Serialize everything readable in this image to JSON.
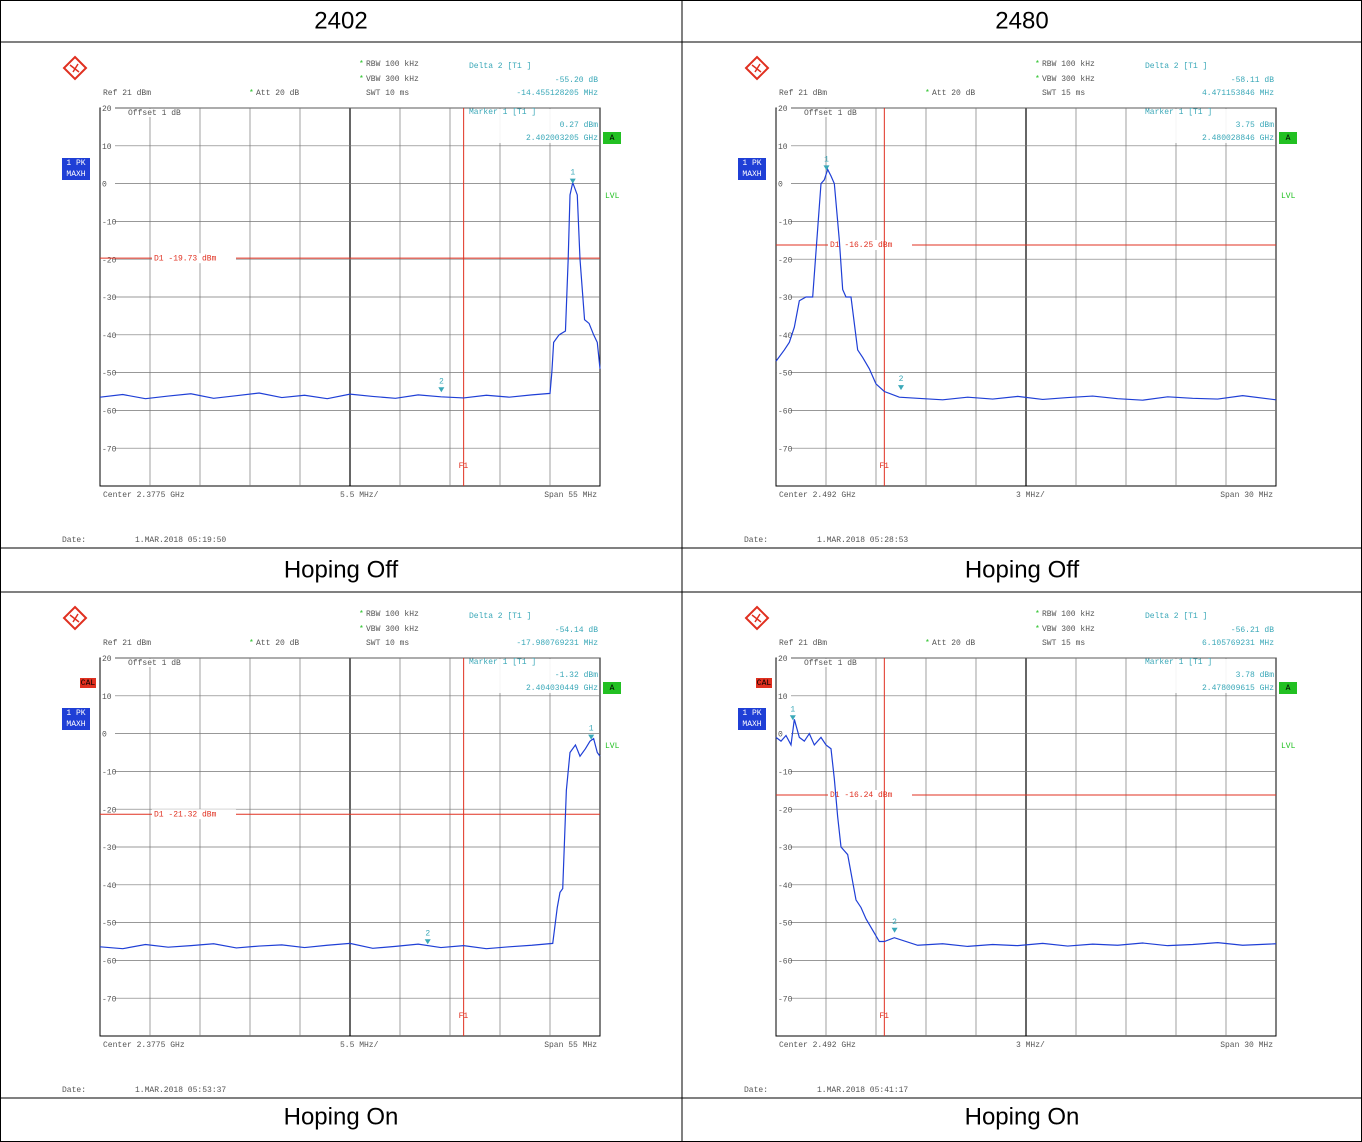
{
  "header": [
    "2402",
    "2480"
  ],
  "captions": [
    [
      "Hoping Off",
      "Hoping Off"
    ],
    [
      "Hoping On",
      "Hoping On"
    ]
  ],
  "panels": [
    {
      "rbw": "RBW 100 kHz",
      "vbw": "VBW 300 kHz",
      "swt": "SWT 10 ms",
      "ref": "Ref  21 dBm",
      "att": "Att  20 dB",
      "offset": "Offset  1 dB",
      "trace_mode": [
        "1 PK",
        "MAXH"
      ],
      "a": "A",
      "lvl": "LVL",
      "delta": [
        "Delta 2 [T1 ]",
        "-55.20 dB",
        "-14.455128205 MHz"
      ],
      "marker": [
        "Marker 1 [T1 ]",
        "0.27 dBm",
        "2.402003205 GHz"
      ],
      "center": "Center 2.3775 GHz",
      "div": "5.5 MHz/",
      "span": "Span 55 MHz",
      "date_label": "Date:",
      "date": "1.MAR.2018  05:19:50",
      "xlim": [
        2.35,
        2.405
      ],
      "ylim": [
        -80,
        20
      ],
      "yticks": [
        20,
        10,
        0,
        -10,
        -20,
        -30,
        -40,
        -50,
        -60,
        -70
      ],
      "d1": {
        "value": -19.73,
        "label": "D1 -19.73 dBm"
      },
      "f1": {
        "value": 2.39,
        "label": "F1"
      },
      "markers": [
        {
          "label": "1",
          "x": 2.402003205,
          "y": 0.27
        },
        {
          "label": "2",
          "x": 2.387548077,
          "y": -54.93
        }
      ],
      "trace": {
        "x": [
          2.35,
          2.3525,
          2.355,
          2.3575,
          2.36,
          2.3625,
          2.365,
          2.3675,
          2.37,
          2.3725,
          2.375,
          2.3775,
          2.38,
          2.3825,
          2.385,
          2.3875,
          2.39,
          2.3925,
          2.395,
          2.3975,
          2.3995,
          2.3997,
          2.3999,
          2.4005,
          2.4012,
          2.4015,
          2.4017,
          2.402,
          2.4025,
          2.4028,
          2.4033,
          2.4038,
          2.4043,
          2.4047,
          2.405
        ],
        "y": [
          -56.5,
          -55.8,
          -56.9,
          -56.2,
          -55.6,
          -56.8,
          -56.1,
          -55.4,
          -56.6,
          -56.0,
          -56.9,
          -55.7,
          -56.3,
          -56.8,
          -55.9,
          -56.4,
          -56.7,
          -56.0,
          -56.5,
          -55.9,
          -55.5,
          -50,
          -42,
          -40,
          -39,
          -20,
          -3,
          0.27,
          -3,
          -20,
          -36,
          -37,
          -40,
          -42,
          -49
        ]
      }
    },
    {
      "rbw": "RBW 100 kHz",
      "vbw": "VBW 300 kHz",
      "swt": "SWT 15 ms",
      "ref": "Ref  21 dBm",
      "att": "Att  20 dB",
      "offset": "Offset  1 dB",
      "trace_mode": [
        "1 PK",
        "MAXH"
      ],
      "a": "A",
      "lvl": "LVL",
      "delta": [
        "Delta 2 [T1 ]",
        "-58.11 dB",
        "4.471153846 MHz"
      ],
      "marker": [
        "Marker 1 [T1 ]",
        "3.75 dBm",
        "2.480028846 GHz"
      ],
      "center": "Center 2.492 GHz",
      "div": "3 MHz/",
      "span": "Span 30 MHz",
      "date_label": "Date:",
      "date": "1.MAR.2018  05:28:53",
      "xlim": [
        2.477,
        2.507
      ],
      "ylim": [
        -80,
        20
      ],
      "yticks": [
        20,
        10,
        0,
        -10,
        -20,
        -30,
        -40,
        -50,
        -60,
        -70
      ],
      "d1": {
        "value": -16.25,
        "label": "D1 -16.25 dBm"
      },
      "f1": {
        "value": 2.4835,
        "label": "F1"
      },
      "markers": [
        {
          "label": "1",
          "x": 2.480028846,
          "y": 3.75
        },
        {
          "label": "2",
          "x": 2.4845,
          "y": -54.36
        }
      ],
      "trace": {
        "x": [
          2.477,
          2.4775,
          2.4778,
          2.4781,
          2.4784,
          2.4788,
          2.4792,
          2.4795,
          2.4797,
          2.4799,
          2.4801,
          2.4803,
          2.4805,
          2.4808,
          2.481,
          2.4812,
          2.4815,
          2.4819,
          2.4822,
          2.4826,
          2.483,
          2.4835,
          2.4844,
          2.4855,
          2.487,
          2.4885,
          2.49,
          2.4915,
          2.493,
          2.4945,
          2.496,
          2.4975,
          2.499,
          2.5005,
          2.502,
          2.5035,
          2.505,
          2.507
        ],
        "y": [
          -47,
          -44,
          -42,
          -38,
          -31,
          -30,
          -30,
          -12,
          0,
          1,
          3.75,
          2,
          0,
          -15,
          -28,
          -30,
          -30,
          -44,
          -46,
          -49,
          -53,
          -55,
          -56.5,
          -56.8,
          -57.2,
          -56.5,
          -57.0,
          -56.3,
          -57.1,
          -56.6,
          -56.2,
          -56.9,
          -57.3,
          -56.4,
          -56.8,
          -57.0,
          -56.1,
          -57.2
        ]
      }
    },
    {
      "rbw": "RBW 100 kHz",
      "vbw": "VBW 300 kHz",
      "swt": "SWT 10 ms",
      "ref": "Ref  21 dBm",
      "att": "Att  20 dB",
      "offset": "Offset  1 dB",
      "trace_mode": [
        "1 PK",
        "MAXH"
      ],
      "a": "A",
      "lvl": "LVL",
      "cal": "CAL",
      "delta": [
        "Delta 2 [T1 ]",
        "-54.14 dB",
        "-17.980769231 MHz"
      ],
      "marker": [
        "Marker 1 [T1 ]",
        "-1.32 dBm",
        "2.404030449 GHz"
      ],
      "center": "Center 2.3775 GHz",
      "div": "5.5 MHz/",
      "span": "Span 55 MHz",
      "date_label": "Date:",
      "date": "1.MAR.2018  05:53:37",
      "xlim": [
        2.35,
        2.405
      ],
      "ylim": [
        -80,
        20
      ],
      "yticks": [
        20,
        10,
        0,
        -10,
        -20,
        -30,
        -40,
        -50,
        -60,
        -70
      ],
      "d1": {
        "value": -21.32,
        "label": "D1 -21.32 dBm"
      },
      "f1": {
        "value": 2.39,
        "label": "F1"
      },
      "markers": [
        {
          "label": "1",
          "x": 2.404030449,
          "y": -1.32
        },
        {
          "label": "2",
          "x": 2.38604968,
          "y": -55.46
        }
      ],
      "trace": {
        "x": [
          2.35,
          2.3525,
          2.355,
          2.3575,
          2.36,
          2.3625,
          2.365,
          2.3675,
          2.37,
          2.3725,
          2.375,
          2.3775,
          2.38,
          2.3825,
          2.385,
          2.3875,
          2.39,
          2.3925,
          2.395,
          2.3975,
          2.3998,
          2.4003,
          2.4006,
          2.4009,
          2.4013,
          2.4017,
          2.4023,
          2.4028,
          2.4034,
          2.4039,
          2.4043,
          2.4047,
          2.405
        ],
        "y": [
          -56.4,
          -56.9,
          -55.8,
          -56.5,
          -56.1,
          -55.6,
          -56.7,
          -56.2,
          -55.9,
          -56.6,
          -56.0,
          -55.5,
          -56.8,
          -56.3,
          -55.7,
          -56.6,
          -56.1,
          -56.9,
          -56.4,
          -56.0,
          -55.5,
          -46,
          -42,
          -41,
          -15,
          -5,
          -3,
          -6,
          -4,
          -2,
          -1.32,
          -5,
          -6
        ]
      }
    },
    {
      "rbw": "RBW 100 kHz",
      "vbw": "VBW 300 kHz",
      "swt": "SWT 15 ms",
      "ref": "Ref  21 dBm",
      "att": "Att  20 dB",
      "offset": "Offset  1 dB",
      "trace_mode": [
        "1 PK",
        "MAXH"
      ],
      "a": "A",
      "lvl": "LVL",
      "cal": "CAL",
      "delta": [
        "Delta 2 [T1 ]",
        "-56.21 dB",
        "6.105769231 MHz"
      ],
      "marker": [
        "Marker 1 [T1 ]",
        "3.78 dBm",
        "2.478009615 GHz"
      ],
      "center": "Center 2.492 GHz",
      "div": "3 MHz/",
      "span": "Span 30 MHz",
      "date_label": "Date:",
      "date": "1.MAR.2018  05:41:17",
      "xlim": [
        2.477,
        2.507
      ],
      "ylim": [
        -80,
        20
      ],
      "yticks": [
        20,
        10,
        0,
        -10,
        -20,
        -30,
        -40,
        -50,
        -60,
        -70
      ],
      "d1": {
        "value": -16.24,
        "label": "D1 -16.24 dBm"
      },
      "f1": {
        "value": 2.4835,
        "label": "F1"
      },
      "markers": [
        {
          "label": "1",
          "x": 2.478009615,
          "y": 3.78
        },
        {
          "label": "2",
          "x": 2.484115384,
          "y": -52.43
        }
      ],
      "trace": {
        "x": [
          2.477,
          2.4773,
          2.4776,
          2.4779,
          2.4781,
          2.4784,
          2.4787,
          2.479,
          2.4793,
          2.4797,
          2.48,
          2.4803,
          2.4805,
          2.4807,
          2.4809,
          2.4813,
          2.4818,
          2.4821,
          2.4824,
          2.4828,
          2.4832,
          2.4835,
          2.4841,
          2.4855,
          2.487,
          2.4885,
          2.49,
          2.4915,
          2.493,
          2.4945,
          2.496,
          2.4975,
          2.499,
          2.5005,
          2.502,
          2.5035,
          2.505,
          2.507
        ],
        "y": [
          -1,
          -2,
          -0.5,
          -3,
          3.78,
          -1,
          -2,
          0,
          -3,
          -1,
          -3,
          -4,
          -12,
          -22,
          -30,
          -32,
          -44,
          -46,
          -49,
          -52,
          -55,
          -55,
          -54,
          -56.0,
          -55.6,
          -56.3,
          -55.8,
          -56.1,
          -55.5,
          -56.2,
          -55.7,
          -56.0,
          -55.4,
          -56.1,
          -55.8,
          -55.3,
          -56.0,
          -55.6
        ]
      }
    }
  ]
}
